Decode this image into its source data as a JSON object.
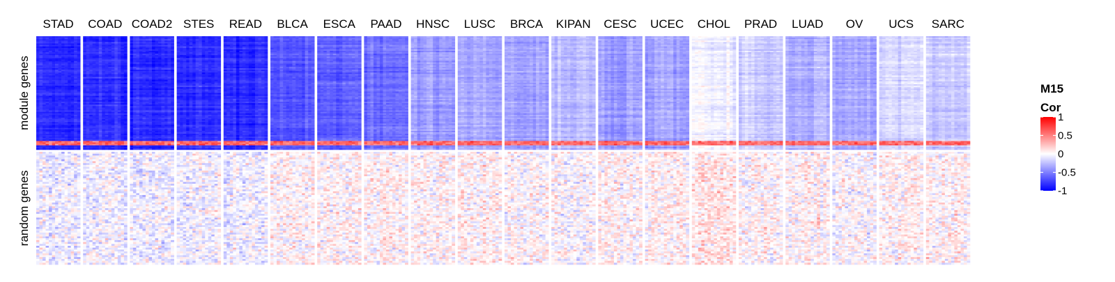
{
  "chart_data": {
    "type": "heatmap",
    "columns": [
      "STAD",
      "COAD",
      "COAD2",
      "STES",
      "READ",
      "BLCA",
      "ESCA",
      "PAAD",
      "HNSC",
      "LUSC",
      "BRCA",
      "KIPAN",
      "CESC",
      "UCEC",
      "CHOL",
      "PRAD",
      "LUAD",
      "OV",
      "UCS",
      "SARC"
    ],
    "row_groups": [
      "module genes",
      "random genes"
    ],
    "legend": {
      "title_line1": "M15",
      "title_line2": "Cor",
      "ticks": [
        {
          "value": 1,
          "label": "1"
        },
        {
          "value": 0.5,
          "label": "0.5"
        },
        {
          "value": 0,
          "label": "0"
        },
        {
          "value": -0.5,
          "label": "-0.5"
        },
        {
          "value": -1,
          "label": "-1"
        }
      ],
      "range": [
        -1,
        1
      ],
      "colors": {
        "low": "#0000FF",
        "mid": "#FFFFFF",
        "high": "#FF0000"
      }
    },
    "module_mean_correlation": [
      -0.85,
      -0.82,
      -0.83,
      -0.82,
      -0.82,
      -0.65,
      -0.6,
      -0.58,
      -0.4,
      -0.35,
      -0.35,
      -0.25,
      -0.38,
      -0.35,
      -0.05,
      -0.2,
      -0.3,
      -0.35,
      -0.15,
      -0.2
    ],
    "random_mean_correlation": [
      -0.05,
      -0.05,
      -0.05,
      -0.05,
      -0.05,
      0.05,
      0.03,
      0.05,
      0.03,
      0.05,
      0.02,
      0.0,
      0.03,
      0.05,
      0.1,
      0.03,
      0.03,
      0.0,
      0.05,
      0.03
    ]
  }
}
